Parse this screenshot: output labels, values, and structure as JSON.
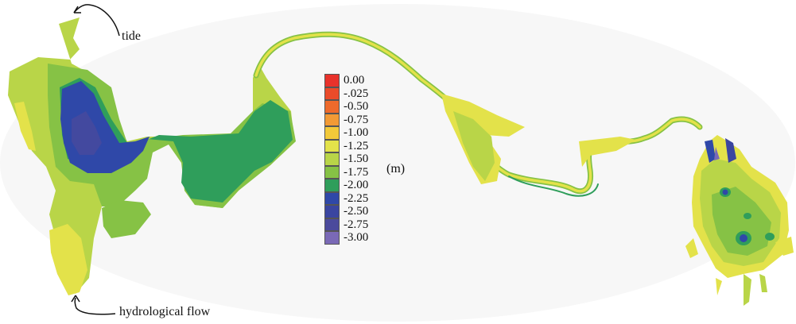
{
  "annotations": {
    "tide": "tide",
    "flow": "hydrological flow"
  },
  "legend": {
    "unit": "(m)",
    "items": [
      {
        "label": "0.00",
        "color": "#e8322b"
      },
      {
        "label": "-.025",
        "color": "#ea4b2a"
      },
      {
        "label": "-0.50",
        "color": "#ee6a2b"
      },
      {
        "label": "-0.75",
        "color": "#f29a35"
      },
      {
        "label": "-1.00",
        "color": "#f2c93a"
      },
      {
        "label": "-1.25",
        "color": "#e3e24a"
      },
      {
        "label": "-1.50",
        "color": "#b9d548"
      },
      {
        "label": "-1.75",
        "color": "#86c245"
      },
      {
        "label": "-2.00",
        "color": "#2f9e5b"
      },
      {
        "label": "-2.25",
        "color": "#2f48a8"
      },
      {
        "label": "-2.50",
        "color": "#3a45a0"
      },
      {
        "label": "-2.75",
        "color": "#4b4a9c"
      },
      {
        "label": "-3.00",
        "color": "#7a69b6"
      }
    ]
  }
}
